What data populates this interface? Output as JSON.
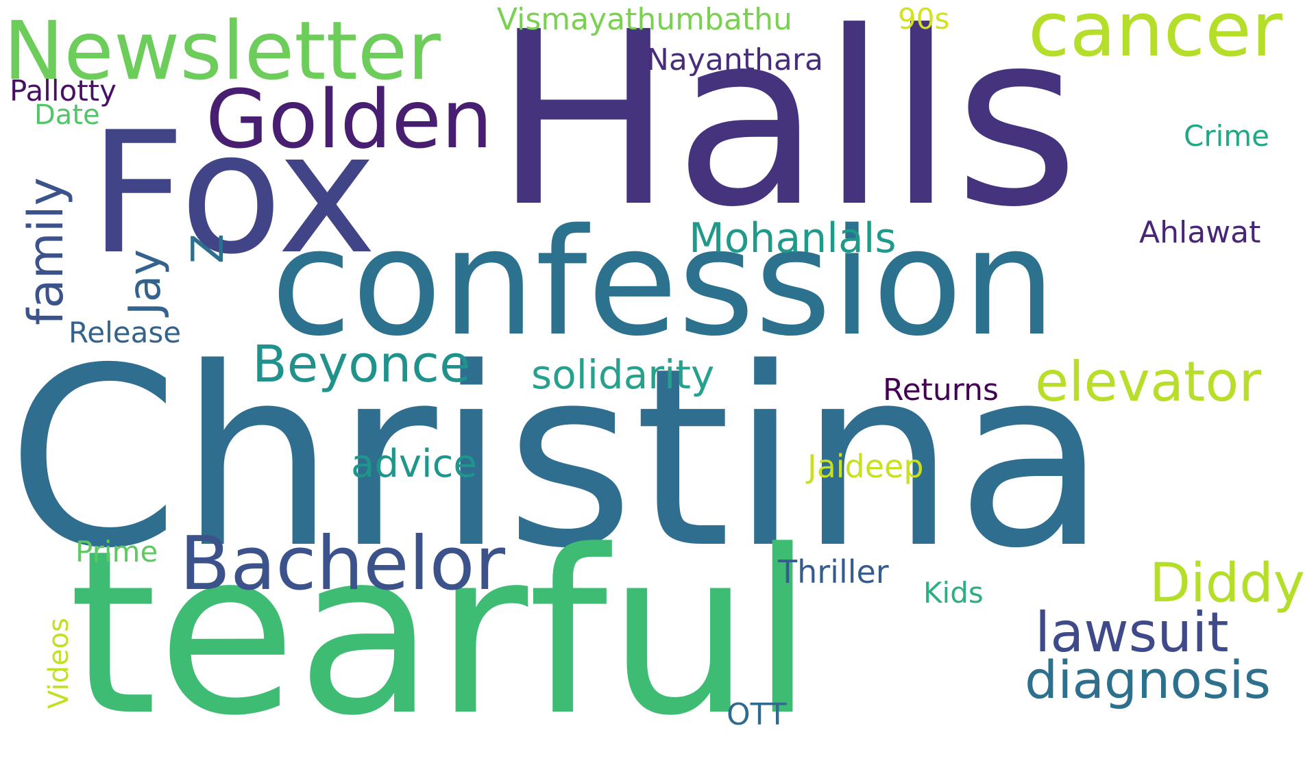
{
  "canvas": {
    "background": "#ffffff"
  },
  "words": {
    "christina": {
      "text": "Christina",
      "color": "#2f6e8e",
      "orientation": "horizontal"
    },
    "tearful": {
      "text": "tearful",
      "color": "#3fbc73",
      "orientation": "horizontal"
    },
    "halls": {
      "text": "Halls",
      "color": "#46337e",
      "orientation": "horizontal"
    },
    "confession": {
      "text": "confession",
      "color": "#2c718e",
      "orientation": "horizontal"
    },
    "fox": {
      "text": "Fox",
      "color": "#414487",
      "orientation": "horizontal"
    },
    "golden": {
      "text": "Golden",
      "color": "#481f70",
      "orientation": "horizontal"
    },
    "newsletter": {
      "text": "Newsletter",
      "color": "#6ccd5a",
      "orientation": "horizontal"
    },
    "cancer": {
      "text": "cancer",
      "color": "#b5de2b",
      "orientation": "horizontal"
    },
    "bachelor": {
      "text": "Bachelor",
      "color": "#3b528b",
      "orientation": "horizontal"
    },
    "beyonce": {
      "text": "Beyonce",
      "color": "#21918c",
      "orientation": "horizontal"
    },
    "elevator": {
      "text": "elevator",
      "color": "#b8de29",
      "orientation": "horizontal"
    },
    "diddy": {
      "text": "Diddy",
      "color": "#b5de2b",
      "orientation": "horizontal"
    },
    "lawsuit": {
      "text": "lawsuit",
      "color": "#3e4a89",
      "orientation": "horizontal"
    },
    "diagnosis": {
      "text": "diagnosis",
      "color": "#2d708e",
      "orientation": "horizontal"
    },
    "mohanlals": {
      "text": "Mohanlals",
      "color": "#1f9a8a",
      "orientation": "horizontal"
    },
    "solidarity": {
      "text": "solidarity",
      "color": "#25a18e",
      "orientation": "horizontal"
    },
    "advice": {
      "text": "advice",
      "color": "#1f968b",
      "orientation": "horizontal"
    },
    "jaideep": {
      "text": "Jaideep",
      "color": "#c8e020",
      "orientation": "horizontal"
    },
    "returns": {
      "text": "Returns",
      "color": "#440154",
      "orientation": "horizontal"
    },
    "ahlawat": {
      "text": "Ahlawat",
      "color": "#482576",
      "orientation": "horizontal"
    },
    "crime": {
      "text": "Crime",
      "color": "#22a785",
      "orientation": "horizontal"
    },
    "nayanthara": {
      "text": "Nayanthara",
      "color": "#472d7b",
      "orientation": "horizontal"
    },
    "nineties": {
      "text": "90s",
      "color": "#d2e21b",
      "orientation": "horizontal"
    },
    "vismaya": {
      "text": "Vismayathumbathu",
      "color": "#7ad151",
      "orientation": "horizontal"
    },
    "pallotty": {
      "text": "Pallotty",
      "color": "#471063",
      "orientation": "horizontal"
    },
    "date": {
      "text": "Date",
      "color": "#52c569",
      "orientation": "horizontal"
    },
    "release": {
      "text": "Release",
      "color": "#33638d",
      "orientation": "horizontal"
    },
    "prime": {
      "text": "Prime",
      "color": "#5ec962",
      "orientation": "horizontal"
    },
    "thriller": {
      "text": "Thriller",
      "color": "#365c8d",
      "orientation": "horizontal"
    },
    "kids": {
      "text": "Kids",
      "color": "#2ab07f",
      "orientation": "horizontal"
    },
    "ott": {
      "text": "OTT",
      "color": "#306a8e",
      "orientation": "horizontal"
    },
    "family": {
      "text": "family",
      "color": "#3b528b",
      "orientation": "vertical"
    },
    "jay": {
      "text": "Jay",
      "color": "#33638d",
      "orientation": "vertical"
    },
    "z": {
      "text": "Z",
      "color": "#2d708e",
      "orientation": "vertical"
    },
    "videos": {
      "text": "Videos",
      "color": "#c2df23",
      "orientation": "vertical"
    }
  }
}
